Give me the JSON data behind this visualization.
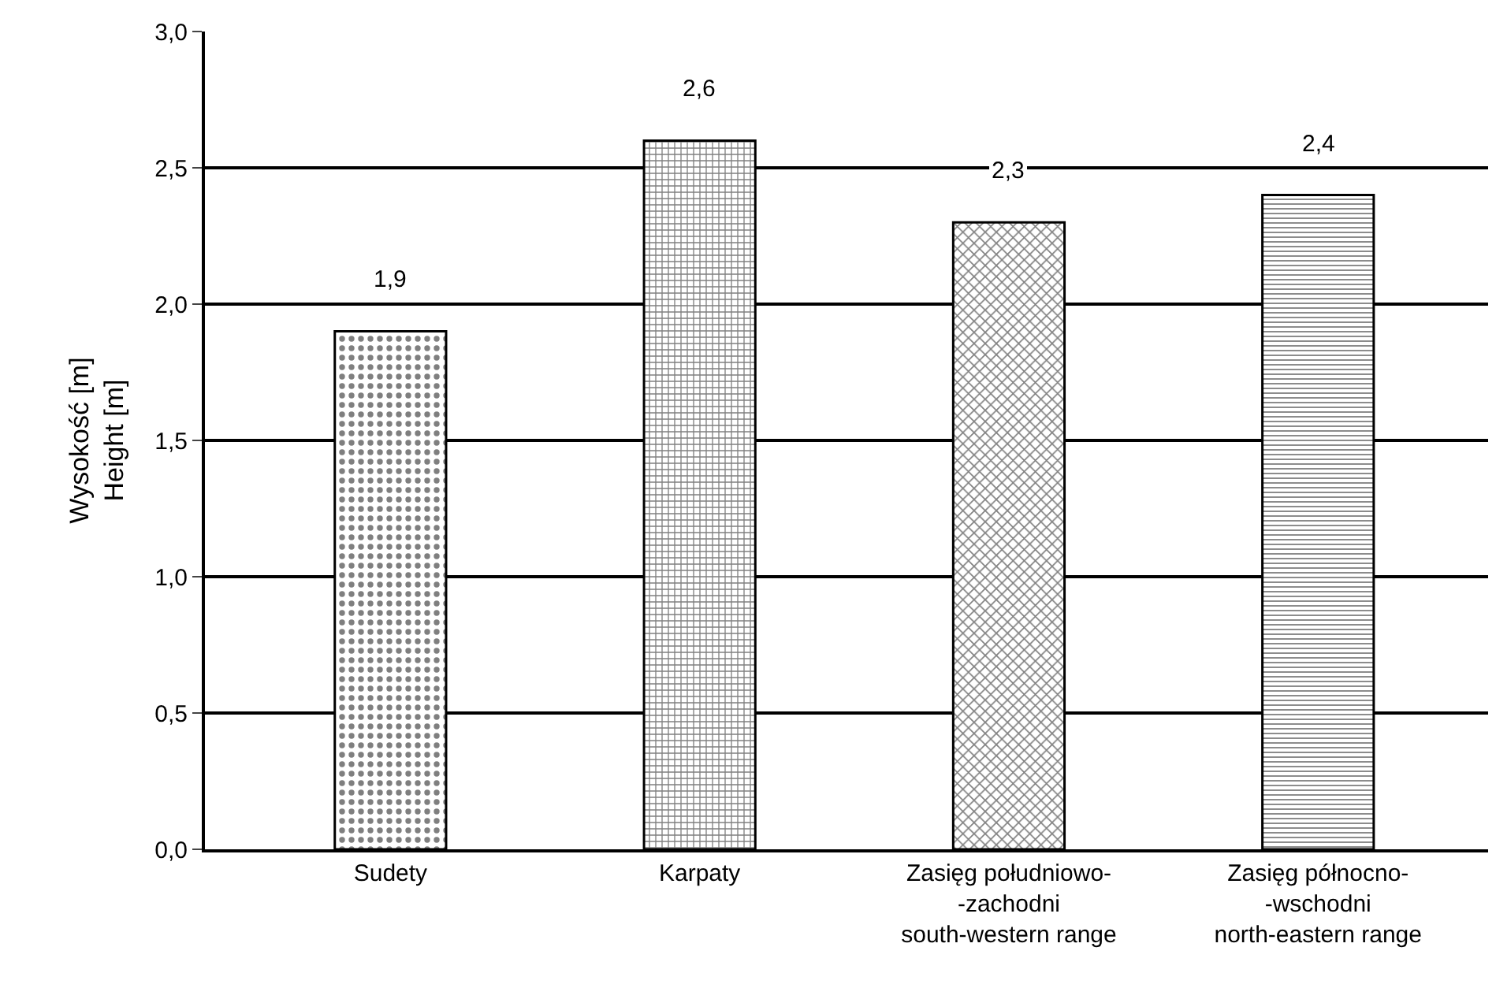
{
  "chart_data": {
    "type": "bar",
    "ylabel": "Wysokość [m]\nHeight [m]",
    "categories": [
      "Sudety",
      "Karpaty",
      "Zasięg południowo-\n-zachodni\nsouth-western range",
      "Zasięg północno-\n-wschodni\nnorth-eastern range"
    ],
    "values": [
      1.9,
      2.6,
      2.3,
      2.4
    ],
    "value_labels": [
      "1,9",
      "2,6",
      "2,3",
      "2,4"
    ],
    "ylim": [
      0,
      3
    ],
    "yticks": [
      {
        "value": 0,
        "label": "0,0"
      },
      {
        "value": 0.5,
        "label": "0,5"
      },
      {
        "value": 1,
        "label": "1,0"
      },
      {
        "value": 1.5,
        "label": "1,5"
      },
      {
        "value": 2,
        "label": "2,0"
      },
      {
        "value": 2.5,
        "label": "2,5"
      },
      {
        "value": 3,
        "label": "3,0"
      }
    ],
    "grid": "y",
    "legend": false
  }
}
